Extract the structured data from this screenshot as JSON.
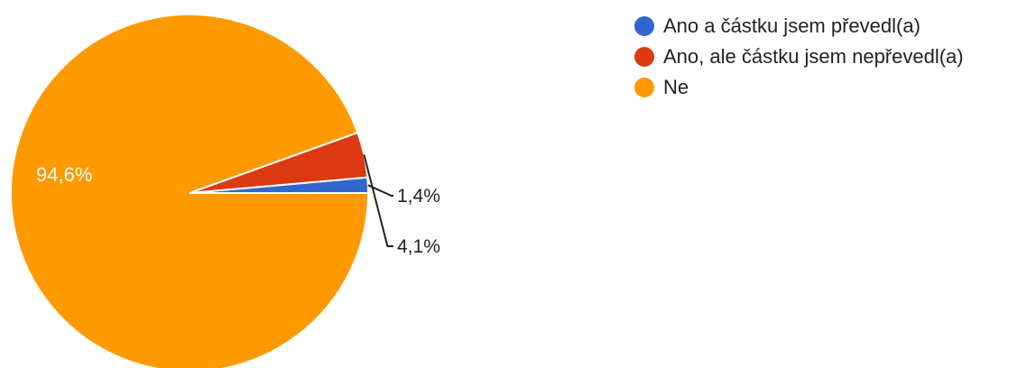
{
  "chart_data": {
    "type": "pie",
    "title": "",
    "slices": [
      {
        "label": "Ano a částku jsem převedl(a)",
        "value": 1.4,
        "value_label": "1,4%",
        "color": "#3366cc"
      },
      {
        "label": "Ano, ale částku jsem nepřevedl(a)",
        "value": 4.1,
        "value_label": "4,1%",
        "color": "#dc3912"
      },
      {
        "label": "Ne",
        "value": 94.6,
        "value_label": "94,6%",
        "color": "#ff9900"
      }
    ],
    "legend_position": "right"
  }
}
